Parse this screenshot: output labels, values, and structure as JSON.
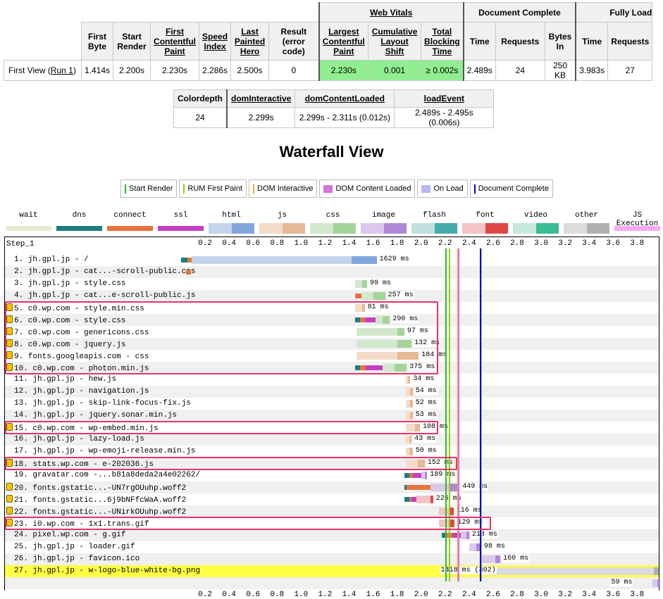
{
  "summary": {
    "group_headers": [
      "Web Vitals",
      "Document Complete",
      "Fully Load"
    ],
    "columns": [
      "First Byte",
      "Start Render",
      "First Contentful Paint",
      "Speed Index",
      "Last Painted Hero",
      "Result (error code)",
      "Largest Contentful Paint",
      "Cumulative Layout Shift",
      "Total Blocking Time",
      "Time",
      "Requests",
      "Bytes In",
      "Time",
      "Requests"
    ],
    "row_label": "First View (",
    "run_link": "Run 1",
    "row_label_end": ")",
    "values": [
      "1.414s",
      "2.200s",
      "2.230s",
      "2.286s",
      "2.500s",
      "0",
      "2.230s",
      "0.001",
      "≥ 0.002s",
      "2.489s",
      "24",
      "250 KB",
      "3.983s",
      "27"
    ]
  },
  "timing": {
    "headers": [
      "Colordepth",
      "domInteractive",
      "domContentLoaded",
      "loadEvent"
    ],
    "values": [
      "24",
      "2.299s",
      "2.299s - 2.311s (0.012s)",
      "2.489s - 2.495s (0.006s)"
    ]
  },
  "waterfall_title": "Waterfall View",
  "legend": [
    {
      "label": "Start Render",
      "color": "#28bc28"
    },
    {
      "label": "RUM First Paint",
      "color": "#8fce00"
    },
    {
      "label": "DOM Interactive",
      "color": "#f0a830"
    },
    {
      "label": "DOM Content Loaded",
      "color": "#d874d8"
    },
    {
      "label": "On Load",
      "color": "#b6b8f8"
    },
    {
      "label": "Document Complete",
      "color": "#0000a8"
    }
  ],
  "colkey": [
    {
      "label": "wait",
      "colors": [
        "#e8ead0"
      ]
    },
    {
      "label": "dns",
      "colors": [
        "#1c7e7e"
      ]
    },
    {
      "label": "connect",
      "colors": [
        "#e8743a"
      ]
    },
    {
      "label": "ssl",
      "colors": [
        "#c43ec4"
      ]
    },
    {
      "label": "html",
      "colors": [
        "#c4d4ec",
        "#82a6dc"
      ]
    },
    {
      "label": "js",
      "colors": [
        "#f4dcc8",
        "#e6b896"
      ]
    },
    {
      "label": "css",
      "colors": [
        "#d2e8cc",
        "#a4d498"
      ]
    },
    {
      "label": "image",
      "colors": [
        "#dcc8ec",
        "#b088d6"
      ]
    },
    {
      "label": "flash",
      "colors": [
        "#c0e0e0",
        "#46aaaa"
      ]
    },
    {
      "label": "font",
      "colors": [
        "#f4c4c4",
        "#e04848"
      ]
    },
    {
      "label": "video",
      "colors": [
        "#c4e8dc",
        "#3cbc94"
      ]
    },
    {
      "label": "other",
      "colors": [
        "#dcdcdc",
        "#b0b0b0"
      ]
    },
    {
      "label": "JS Execution",
      "colors": [
        "#f8a8f0"
      ]
    }
  ],
  "step_label": "Step_1",
  "axis": {
    "min": 0,
    "max": 3.98,
    "ticks": [
      "0.2",
      "0.4",
      "0.6",
      "0.8",
      "1.0",
      "1.2",
      "1.4",
      "1.6",
      "1.8",
      "2.0",
      "2.2",
      "2.4",
      "2.6",
      "2.8",
      "3.0",
      "3.2",
      "3.4",
      "3.6",
      "3.8"
    ]
  },
  "markers": [
    {
      "name": "start-render",
      "t": 2.2,
      "color": "#28bc28"
    },
    {
      "name": "rum-first-paint",
      "t": 2.23,
      "color": "#8fce00"
    },
    {
      "name": "dom-interactive",
      "t": 2.299,
      "color": "#f0a830"
    },
    {
      "name": "dom-content-loaded",
      "t": 2.305,
      "color": "#d874d8"
    },
    {
      "name": "on-load",
      "t": 2.492,
      "color": "#b6b8f8"
    },
    {
      "name": "document-complete",
      "t": 2.489,
      "color": "#0000a8"
    }
  ],
  "requests": [
    {
      "label": "1. jh.gpl.jp - /",
      "secure": false,
      "type": "html",
      "start": 0,
      "dns": 0.05,
      "connect": 0.04,
      "ssl": 0,
      "ttfb": 1.33,
      "download": 0.21,
      "duration": "1629 ms"
    },
    {
      "label": "2. jh.gpl.jp - cat...-scroll-public.css",
      "secure": false,
      "type": "css",
      "start": 0.04,
      "dns": 0,
      "connect": 0.04,
      "ssl": 0,
      "ttfb": 0,
      "download": 0,
      "duration": ""
    },
    {
      "label": "3. jh.gpl.jp - style.css",
      "secure": false,
      "type": "css",
      "start": 1.45,
      "dns": 0,
      "connect": 0,
      "ssl": 0,
      "ttfb": 0.06,
      "download": 0.04,
      "duration": "99 ms"
    },
    {
      "label": "4. jh.gpl.jp - cat...e-scroll-public.js",
      "secure": false,
      "type": "css",
      "start": 1.45,
      "dns": 0,
      "connect": 0.05,
      "ssl": 0,
      "ttfb": 0.1,
      "download": 0.1,
      "duration": "257 ms"
    },
    {
      "label": "5. c0.wp.com - style.min.css",
      "secure": true,
      "type": "js",
      "start": 1.45,
      "dns": 0,
      "connect": 0,
      "ssl": 0,
      "ttfb": 0.06,
      "download": 0.02,
      "duration": "81 ms"
    },
    {
      "label": "6. c0.wp.com - style.css",
      "secure": true,
      "type": "css",
      "start": 1.45,
      "dns": 0.04,
      "connect": 0.04,
      "ssl": 0.09,
      "ttfb": 0.06,
      "download": 0.06,
      "duration": "290 ms"
    },
    {
      "label": "7. c0.wp.com - genericons.css",
      "secure": true,
      "type": "css",
      "start": 1.46,
      "dns": 0,
      "connect": 0,
      "ssl": 0,
      "ttfb": 0.34,
      "download": 0.06,
      "duration": "97 ms"
    },
    {
      "label": "8. c0.wp.com - jquery.js",
      "secure": true,
      "type": "css",
      "start": 1.46,
      "dns": 0,
      "connect": 0,
      "ssl": 0,
      "ttfb": 0.34,
      "download": 0.12,
      "duration": "132 ms"
    },
    {
      "label": "9. fonts.googleapis.com - css",
      "secure": true,
      "type": "js",
      "start": 1.46,
      "dns": 0,
      "connect": 0,
      "ssl": 0,
      "ttfb": 0.34,
      "download": 0.18,
      "duration": "184 ms"
    },
    {
      "label": "10. c0.wp.com - photon.min.js",
      "secure": true,
      "type": "css",
      "start": 1.45,
      "dns": 0.04,
      "connect": 0.05,
      "ssl": 0.14,
      "ttfb": 0.1,
      "download": 0.1,
      "duration": "375 ms"
    },
    {
      "label": "11. jh.gpl.jp - hew.js",
      "secure": false,
      "type": "js",
      "start": 1.87,
      "dns": 0,
      "connect": 0,
      "ssl": 0,
      "ttfb": 0.02,
      "download": 0.02,
      "duration": "34 ms"
    },
    {
      "label": "12. jh.gpl.jp - navigation.js",
      "secure": false,
      "type": "js",
      "start": 1.87,
      "dns": 0,
      "connect": 0,
      "ssl": 0,
      "ttfb": 0.04,
      "download": 0.02,
      "duration": "54 ms"
    },
    {
      "label": "13. jh.gpl.jp - skip-link-focus-fix.js",
      "secure": false,
      "type": "js",
      "start": 1.87,
      "dns": 0,
      "connect": 0,
      "ssl": 0,
      "ttfb": 0.04,
      "download": 0.02,
      "duration": "52 ms"
    },
    {
      "label": "14. jh.gpl.jp - jquery.sonar.min.js",
      "secure": false,
      "type": "js",
      "start": 1.87,
      "dns": 0,
      "connect": 0,
      "ssl": 0,
      "ttfb": 0.04,
      "download": 0.02,
      "duration": "53 ms"
    },
    {
      "label": "15. c0.wp.com - wp-embed.min.js",
      "secure": true,
      "type": "js",
      "start": 1.87,
      "dns": 0,
      "connect": 0,
      "ssl": 0,
      "ttfb": 0.08,
      "download": 0.04,
      "duration": "108 ms"
    },
    {
      "label": "16. jh.gpl.jp - lazy-load.js",
      "secure": false,
      "type": "js",
      "start": 1.87,
      "dns": 0,
      "connect": 0,
      "ssl": 0,
      "ttfb": 0.03,
      "download": 0.02,
      "duration": "43 ms"
    },
    {
      "label": "17. jh.gpl.jp - wp-emoji-release.min.js",
      "secure": false,
      "type": "js",
      "start": 1.87,
      "dns": 0,
      "connect": 0,
      "ssl": 0,
      "ttfb": 0.03,
      "download": 0.03,
      "duration": "50 ms"
    },
    {
      "label": "18. stats.wp.com - e-202036.js",
      "secure": true,
      "type": "js",
      "start": 1.87,
      "dns": 0,
      "connect": 0,
      "ssl": 0,
      "ttfb": 0.1,
      "download": 0.06,
      "duration": "152 ms"
    },
    {
      "label": "19. gravatar.com -...b81a8deda2a4e02262/",
      "secure": false,
      "type": "image",
      "start": 1.86,
      "dns": 0.04,
      "connect": 0.03,
      "ssl": 0.07,
      "ttfb": 0.03,
      "download": 0.02,
      "duration": "189 ms"
    },
    {
      "label": "20. fonts.gstatic...-UN7rgOUuhp.woff2",
      "secure": true,
      "type": "image",
      "start": 1.86,
      "dns": 0.02,
      "connect": 0.2,
      "ssl": 0,
      "ttfb": 0.15,
      "download": 0.09,
      "duration": "449 ms"
    },
    {
      "label": "21. fonts.gstatic...6j9bNFfcWaA.woff2",
      "secure": true,
      "type": "font",
      "start": 1.86,
      "dns": 0.04,
      "connect": 0.02,
      "ssl": 0.04,
      "ttfb": 0.12,
      "download": 0.02,
      "duration": "226 ms"
    },
    {
      "label": "22. fonts.gstatic...-UNirkOUuhp.woff2",
      "secure": true,
      "type": "font",
      "start": 2.15,
      "dns": 0,
      "connect": 0,
      "ssl": 0,
      "ttfb": 0.08,
      "download": 0.04,
      "duration": "116 ms"
    },
    {
      "label": "23. i0.wp.com - 1x1.trans.gif",
      "secure": true,
      "type": "font",
      "start": 2.15,
      "dns": 0,
      "connect": 0,
      "ssl": 0,
      "ttfb": 0.09,
      "download": 0.04,
      "duration": "129 ms"
    },
    {
      "label": "24. pixel.wp.com - g.gif",
      "secure": false,
      "type": "image",
      "start": 2.17,
      "dns": 0.04,
      "connect": 0.05,
      "ssl": 0.07,
      "ttfb": 0.05,
      "download": 0.02,
      "duration": "218 ms"
    },
    {
      "label": "25. jh.gpl.jp - loader.gif",
      "secure": false,
      "type": "image",
      "start": 2.4,
      "dns": 0,
      "connect": 0,
      "ssl": 0,
      "ttfb": 0.06,
      "download": 0.04,
      "duration": "98 ms"
    },
    {
      "label": "26. jh.gpl.jp - favicon.ico",
      "secure": false,
      "type": "image",
      "start": 2.5,
      "dns": 0,
      "connect": 0,
      "ssl": 0,
      "ttfb": 0.12,
      "download": 0.04,
      "duration": "160 ms"
    },
    {
      "label": "27. jh.gpl.jp - w-logo-blue-white-bg.png",
      "secure": false,
      "type": "other",
      "start": 2.51,
      "dns": 0,
      "connect": 0,
      "ssl": 0,
      "ttfb": 1.43,
      "download": 0.04,
      "duration": "1418 ms (302)"
    },
    {
      "label": "",
      "secure": false,
      "type": "image",
      "start": 3.93,
      "dns": 0,
      "connect": 0,
      "ssl": 0,
      "ttfb": 0.04,
      "download": 0.02,
      "duration": "59 ms"
    }
  ],
  "highlight_row": 26
}
